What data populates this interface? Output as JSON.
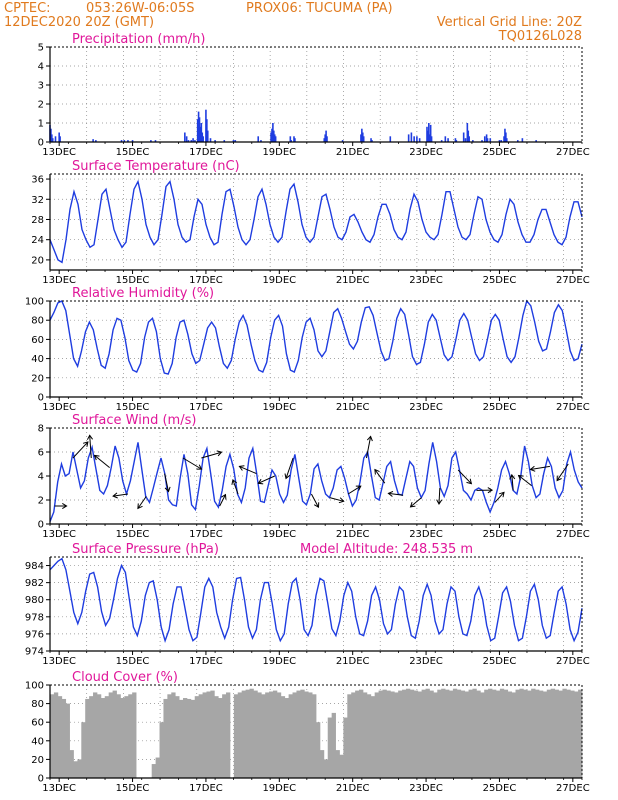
{
  "header": {
    "source": "CPTEC:",
    "coords": "053:26W-06:05S",
    "station": "PROX06: TUCUMA (PA)",
    "date": "12DEC2020 20Z (GMT)",
    "grid_note": "Vertical Grid Line: 20Z",
    "code": "TQ0126L028"
  },
  "x_tick_labels": [
    "13DEC",
    "15DEC",
    "17DEC",
    "19DEC",
    "21DEC",
    "23DEC",
    "25DEC",
    "27DEC"
  ],
  "chart_data": [
    {
      "type": "bar",
      "title": "Precipitation (mm/h)",
      "ylim": [
        0,
        5
      ],
      "yticks": [
        0,
        1,
        2,
        3,
        4,
        5
      ],
      "color": "#1f3de0",
      "bars": [
        [
          0.0,
          0.9
        ],
        [
          0.1,
          0.7
        ],
        [
          0.2,
          0.4
        ],
        [
          0.3,
          0.2
        ],
        [
          0.6,
          0.3
        ],
        [
          1.0,
          0.5
        ],
        [
          1.1,
          0.3
        ],
        [
          4.7,
          0.15
        ],
        [
          5.0,
          0.1
        ],
        [
          7.8,
          0.1
        ],
        [
          8.1,
          0.1
        ],
        [
          8.5,
          0.1
        ],
        [
          9.0,
          0.1
        ],
        [
          11.0,
          0.1
        ],
        [
          11.5,
          0.1
        ],
        [
          14.7,
          0.5
        ],
        [
          14.9,
          0.3
        ],
        [
          15.1,
          0.1
        ],
        [
          15.4,
          0.1
        ],
        [
          15.6,
          0.2
        ],
        [
          15.8,
          0.1
        ],
        [
          16.1,
          1.2
        ],
        [
          16.2,
          1.6
        ],
        [
          16.3,
          1.3
        ],
        [
          16.4,
          0.8
        ],
        [
          16.5,
          1.0
        ],
        [
          16.6,
          0.5
        ],
        [
          16.7,
          0.3
        ],
        [
          17.0,
          1.7
        ],
        [
          17.1,
          1.2
        ],
        [
          17.2,
          0.6
        ],
        [
          17.5,
          0.2
        ],
        [
          18.0,
          0.1
        ],
        [
          19.0,
          0.1
        ],
        [
          20.0,
          0.1
        ],
        [
          20.2,
          0.1
        ],
        [
          22.7,
          0.3
        ],
        [
          23.0,
          0.1
        ],
        [
          24.1,
          0.5
        ],
        [
          24.2,
          0.7
        ],
        [
          24.3,
          1.0
        ],
        [
          24.4,
          0.6
        ],
        [
          24.5,
          0.4
        ],
        [
          24.6,
          0.3
        ],
        [
          26.2,
          0.3
        ],
        [
          26.3,
          0.1
        ],
        [
          26.6,
          0.3
        ],
        [
          26.7,
          0.2
        ],
        [
          29.9,
          0.2
        ],
        [
          30.0,
          0.4
        ],
        [
          30.1,
          0.6
        ],
        [
          30.2,
          0.3
        ],
        [
          31.9,
          0.1
        ],
        [
          33.9,
          0.4
        ],
        [
          34.0,
          0.7
        ],
        [
          34.1,
          0.5
        ],
        [
          34.2,
          0.3
        ],
        [
          35.0,
          0.2
        ],
        [
          35.1,
          0.1
        ],
        [
          37.1,
          0.3
        ],
        [
          39.1,
          0.4
        ],
        [
          39.4,
          0.5
        ],
        [
          39.7,
          0.3
        ],
        [
          40.0,
          0.3
        ],
        [
          40.3,
          0.2
        ],
        [
          41.1,
          0.8
        ],
        [
          41.2,
          0.6
        ],
        [
          41.3,
          1.0
        ],
        [
          41.4,
          0.4
        ],
        [
          41.5,
          0.9
        ],
        [
          41.6,
          0.3
        ],
        [
          42.7,
          0.1
        ],
        [
          43.1,
          0.3
        ],
        [
          43.4,
          0.2
        ],
        [
          44.2,
          0.2
        ],
        [
          44.3,
          0.1
        ],
        [
          45.1,
          0.5
        ],
        [
          45.3,
          0.2
        ],
        [
          45.5,
          1.0
        ],
        [
          45.6,
          0.6
        ],
        [
          45.7,
          0.3
        ],
        [
          46.1,
          0.1
        ],
        [
          47.1,
          0.1
        ],
        [
          47.4,
          0.3
        ],
        [
          47.6,
          0.4
        ],
        [
          47.7,
          0.2
        ],
        [
          48.0,
          0.2
        ],
        [
          49.0,
          0.1
        ],
        [
          49.2,
          0.1
        ],
        [
          49.5,
          0.3
        ],
        [
          49.6,
          0.7
        ],
        [
          49.7,
          0.5
        ],
        [
          49.8,
          0.2
        ],
        [
          51.0,
          0.1
        ],
        [
          51.5,
          0.2
        ],
        [
          53.0,
          0.1
        ]
      ]
    },
    {
      "type": "line",
      "title": "Surface Temperature (nC)",
      "ylim": [
        18,
        37
      ],
      "yticks": [
        20,
        24,
        28,
        32,
        36
      ],
      "color": "#1f3de0",
      "values": [
        24.0,
        22.0,
        20.0,
        19.5,
        24.0,
        30.0,
        33.5,
        31.0,
        26.0,
        24.0,
        22.5,
        23.0,
        28.0,
        33.0,
        34.0,
        30.0,
        26.0,
        24.0,
        22.5,
        23.5,
        29.0,
        34.0,
        35.5,
        32.0,
        27.0,
        24.5,
        23.0,
        24.0,
        29.0,
        34.5,
        35.5,
        32.0,
        27.0,
        24.5,
        23.5,
        24.0,
        28.5,
        32.0,
        31.0,
        27.0,
        24.5,
        23.0,
        23.5,
        29.0,
        33.5,
        34.0,
        30.5,
        26.5,
        24.0,
        23.0,
        24.0,
        28.0,
        32.5,
        34.0,
        31.0,
        27.0,
        24.5,
        23.5,
        24.5,
        29.5,
        34.0,
        35.0,
        31.5,
        27.0,
        24.5,
        23.5,
        24.5,
        28.5,
        32.5,
        33.0,
        30.0,
        26.5,
        24.5,
        24.0,
        25.5,
        28.5,
        29.0,
        27.5,
        25.5,
        24.0,
        23.5,
        25.0,
        28.5,
        31.0,
        31.0,
        29.0,
        26.0,
        24.5,
        24.0,
        25.5,
        30.0,
        33.0,
        31.5,
        28.0,
        25.5,
        24.5,
        24.0,
        25.0,
        29.0,
        33.5,
        33.5,
        30.0,
        26.5,
        24.5,
        24.0,
        25.0,
        29.0,
        32.5,
        32.0,
        28.0,
        25.5,
        24.0,
        23.5,
        25.0,
        29.0,
        32.0,
        31.0,
        27.5,
        25.0,
        23.5,
        23.5,
        25.0,
        28.0,
        30.0,
        30.0,
        27.5,
        25.0,
        23.5,
        23.0,
        24.5,
        28.5,
        31.5,
        31.5,
        28.5
      ]
    },
    {
      "type": "line",
      "title": "Relative Humidity (%)",
      "ylim": [
        0,
        100
      ],
      "yticks": [
        0,
        20,
        40,
        60,
        80,
        100
      ],
      "color": "#1f3de0",
      "values": [
        80,
        88,
        98,
        100,
        90,
        65,
        40,
        32,
        48,
        68,
        78,
        70,
        50,
        33,
        30,
        45,
        70,
        82,
        80,
        62,
        38,
        28,
        26,
        35,
        62,
        78,
        82,
        68,
        40,
        25,
        24,
        35,
        62,
        78,
        80,
        65,
        45,
        35,
        38,
        55,
        72,
        78,
        72,
        52,
        35,
        30,
        38,
        60,
        78,
        85,
        75,
        55,
        38,
        28,
        26,
        36,
        62,
        80,
        85,
        74,
        45,
        28,
        26,
        38,
        62,
        78,
        82,
        70,
        48,
        42,
        48,
        68,
        88,
        92,
        82,
        68,
        55,
        50,
        58,
        78,
        93,
        94,
        85,
        66,
        48,
        38,
        40,
        58,
        82,
        92,
        86,
        65,
        42,
        34,
        36,
        55,
        78,
        86,
        80,
        62,
        44,
        38,
        42,
        60,
        80,
        87,
        80,
        62,
        45,
        38,
        42,
        60,
        80,
        86,
        80,
        60,
        42,
        36,
        42,
        62,
        85,
        100,
        95,
        78,
        58,
        48,
        50,
        68,
        88,
        96,
        90,
        70,
        48,
        38,
        40,
        55
      ]
    },
    {
      "type": "line",
      "title": "Surface Wind (m/s)",
      "ylim": [
        0,
        8
      ],
      "yticks": [
        0,
        2,
        4,
        6,
        8
      ],
      "color": "#1f3de0",
      "values": [
        0.2,
        1.0,
        3.5,
        5.0,
        4.0,
        4.2,
        6.0,
        4.5,
        3.0,
        3.6,
        5.5,
        6.4,
        4.6,
        2.8,
        2.5,
        3.2,
        4.7,
        6.5,
        5.5,
        3.6,
        2.5,
        3.6,
        5.2,
        6.8,
        4.5,
        2.3,
        1.8,
        3.0,
        4.3,
        5.5,
        4.2,
        2.0,
        1.6,
        1.5,
        3.8,
        5.8,
        4.2,
        1.6,
        1.2,
        3.2,
        5.5,
        6.3,
        4.2,
        1.9,
        1.4,
        2.8,
        4.8,
        5.8,
        4.6,
        2.5,
        1.8,
        3.0,
        5.5,
        6.3,
        4.2,
        1.9,
        1.8,
        3.2,
        4.5,
        4.0,
        2.5,
        1.8,
        2.4,
        4.5,
        5.8,
        3.8,
        1.9,
        1.6,
        2.5,
        4.6,
        5.0,
        3.6,
        2.5,
        2.2,
        3.0,
        4.5,
        4.8,
        3.8,
        2.5,
        1.5,
        2.0,
        3.5,
        5.5,
        6.0,
        4.0,
        2.2,
        2.0,
        3.4,
        4.8,
        5.2,
        3.6,
        2.5,
        2.4,
        3.8,
        5.2,
        4.8,
        3.0,
        2.2,
        2.8,
        5.0,
        6.8,
        5.2,
        3.0,
        2.3,
        3.2,
        5.5,
        6.0,
        4.5,
        2.8,
        2.5,
        2.0,
        2.8,
        3.0,
        2.8,
        1.8,
        1.0,
        1.8,
        3.0,
        4.5,
        5.2,
        4.2,
        2.8,
        2.5,
        4.0,
        6.5,
        5.2,
        3.2,
        2.2,
        2.5,
        4.2,
        5.5,
        4.8,
        3.0,
        2.2,
        2.8,
        5.0,
        6.0,
        4.5,
        3.5,
        3.0
      ]
    },
    {
      "type": "line",
      "title": "Surface Pressure (hPa)",
      "subtitle": "Model Altitude: 248.535 m",
      "ylim": [
        974,
        985
      ],
      "yticks": [
        974,
        976,
        978,
        980,
        982,
        984
      ],
      "color": "#1f3de0",
      "values": [
        983.5,
        984.0,
        984.5,
        984.8,
        983.5,
        981.0,
        978.5,
        977.2,
        978.5,
        981.0,
        983.0,
        983.2,
        981.5,
        978.6,
        977.0,
        977.8,
        980.0,
        982.5,
        984.0,
        983.2,
        980.0,
        976.8,
        975.8,
        977.5,
        980.5,
        982.0,
        982.2,
        980.0,
        976.8,
        975.2,
        976.5,
        979.5,
        981.5,
        981.5,
        979.0,
        976.5,
        975.2,
        975.6,
        978.5,
        981.5,
        982.5,
        981.5,
        978.5,
        976.8,
        975.5,
        976.8,
        980.0,
        982.5,
        982.6,
        980.0,
        976.8,
        975.5,
        976.5,
        980.0,
        982.0,
        982.0,
        979.5,
        976.5,
        975.2,
        976.0,
        979.5,
        982.0,
        982.5,
        980.0,
        976.5,
        975.8,
        977.0,
        980.5,
        982.5,
        982.2,
        979.5,
        976.6,
        975.8,
        977.5,
        980.5,
        982.0,
        981.0,
        978.0,
        976.0,
        975.8,
        977.5,
        980.5,
        981.5,
        980.0,
        977.2,
        976.0,
        976.5,
        979.5,
        981.5,
        981.0,
        978.0,
        975.8,
        975.5,
        977.5,
        980.5,
        981.8,
        980.5,
        977.5,
        976.0,
        976.5,
        979.5,
        981.5,
        981.0,
        978.0,
        976.0,
        975.8,
        977.5,
        980.5,
        981.5,
        980.0,
        977.0,
        975.2,
        975.5,
        978.0,
        980.8,
        981.5,
        979.8,
        977.0,
        975.2,
        975.5,
        978.0,
        981.0,
        981.8,
        980.0,
        977.0,
        975.5,
        975.8,
        978.5,
        981.0,
        981.5,
        979.5,
        976.5,
        975.2,
        976.2,
        979.0
      ]
    },
    {
      "type": "bar",
      "title": "Cloud Cover (%)",
      "ylim": [
        0,
        100
      ],
      "yticks": [
        0,
        20,
        40,
        60,
        80,
        100
      ],
      "color": "#a6a6a6",
      "values": [
        90,
        92,
        88,
        85,
        80,
        30,
        18,
        20,
        60,
        85,
        88,
        92,
        90,
        86,
        88,
        92,
        94,
        90,
        86,
        88,
        90,
        92,
        0,
        0,
        0,
        0,
        15,
        22,
        60,
        85,
        90,
        92,
        88,
        84,
        86,
        85,
        84,
        88,
        90,
        92,
        93,
        94,
        88,
        86,
        90,
        92,
        0,
        90,
        92,
        94,
        95,
        96,
        94,
        92,
        90,
        92,
        93,
        94,
        92,
        88,
        86,
        90,
        92,
        94,
        95,
        93,
        92,
        90,
        60,
        30,
        20,
        65,
        70,
        30,
        25,
        65,
        90,
        92,
        94,
        95,
        92,
        90,
        88,
        92,
        94,
        95,
        94,
        93,
        92,
        94,
        95,
        96,
        95,
        94,
        93,
        95,
        96,
        94,
        92,
        95,
        96,
        95,
        94,
        96,
        95,
        94,
        93,
        95,
        96,
        94,
        92,
        95,
        96,
        95,
        94,
        96,
        95,
        93,
        92,
        95,
        96,
        95,
        94,
        96,
        95,
        94,
        93,
        95,
        96,
        95,
        94,
        96,
        95,
        94,
        93,
        95
      ]
    }
  ]
}
